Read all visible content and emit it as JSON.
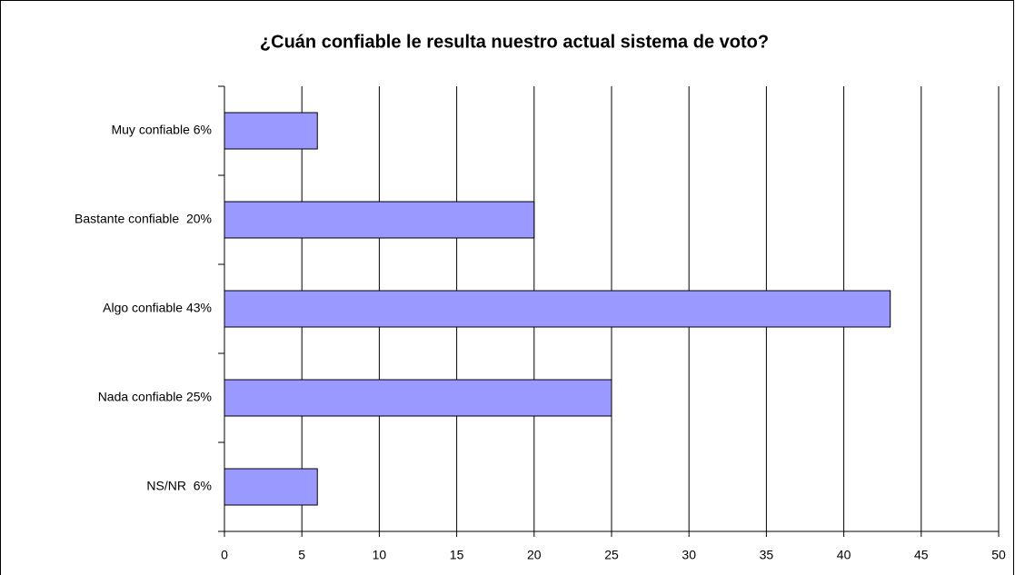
{
  "chart_data": {
    "type": "bar",
    "orientation": "horizontal",
    "title": "¿Cuán confiable le resulta nuestro actual sistema de voto?",
    "categories": [
      "Muy confiable 6%",
      "Bastante confiable  20%",
      "Algo confiable 43%",
      "Nada confiable 25%",
      "NS/NR  6%"
    ],
    "values": [
      6,
      20,
      43,
      25,
      6
    ],
    "color": "#9999ff",
    "xlim": [
      0,
      50
    ],
    "xticks": [
      0,
      5,
      10,
      15,
      20,
      25,
      30,
      35,
      40,
      45,
      50
    ],
    "grid": true
  }
}
